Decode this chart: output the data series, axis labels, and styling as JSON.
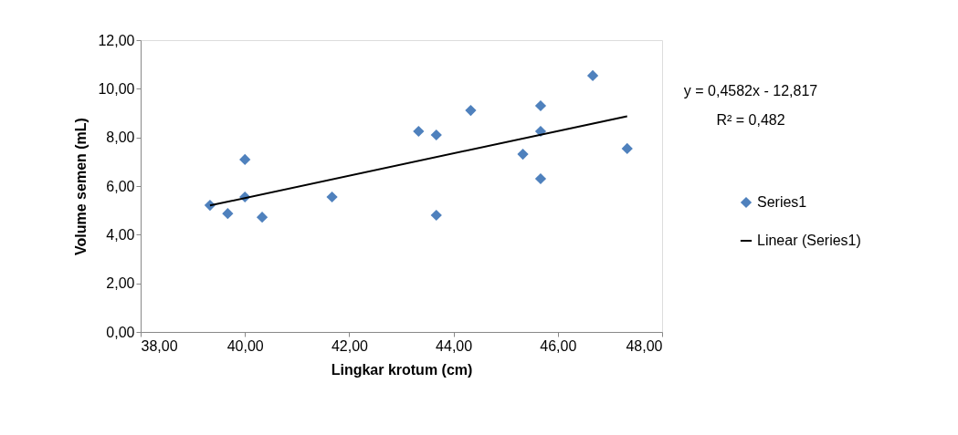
{
  "chart_data": {
    "type": "scatter",
    "xlabel": "Lingkar krotum (cm)",
    "ylabel": "Volume semen (mL)",
    "series": [
      {
        "name": "Series1",
        "color": "#4f81bd",
        "marker": "diamond",
        "x": [
          39.33,
          39.67,
          40.0,
          40.0,
          40.33,
          41.67,
          43.33,
          43.67,
          43.67,
          44.33,
          45.33,
          45.67,
          45.67,
          45.67,
          46.67,
          47.33
        ],
        "values": [
          5.21,
          4.87,
          7.09,
          5.55,
          4.72,
          5.55,
          8.25,
          8.1,
          4.8,
          9.11,
          7.31,
          9.3,
          8.25,
          6.3,
          10.54,
          7.54
        ]
      },
      {
        "name": "Linear (Series1)",
        "type": "line",
        "color": "#000000",
        "x": [
          39.33,
          47.33
        ],
        "values": [
          5.2,
          8.87
        ]
      }
    ],
    "xlim": [
      38,
      48
    ],
    "xticks": [
      {
        "value": 38,
        "label": "38,00"
      },
      {
        "value": 40,
        "label": "40,00"
      },
      {
        "value": 42,
        "label": "42,00"
      },
      {
        "value": 44,
        "label": "44,00"
      },
      {
        "value": 46,
        "label": "46,00"
      },
      {
        "value": 48,
        "label": "48,00"
      }
    ],
    "ylim": [
      0,
      12
    ],
    "yticks": [
      {
        "value": 0,
        "label": "0,00"
      },
      {
        "value": 2,
        "label": "2,00"
      },
      {
        "value": 4,
        "label": "4,00"
      },
      {
        "value": 6,
        "label": "6,00"
      },
      {
        "value": 8,
        "label": "8,00"
      },
      {
        "value": 10,
        "label": "10,00"
      },
      {
        "value": 12,
        "label": "12,00"
      }
    ],
    "annotations": [
      "y = 0,4582x - 12,817",
      "R² = 0,482"
    ],
    "legend": "right",
    "grid": false
  }
}
